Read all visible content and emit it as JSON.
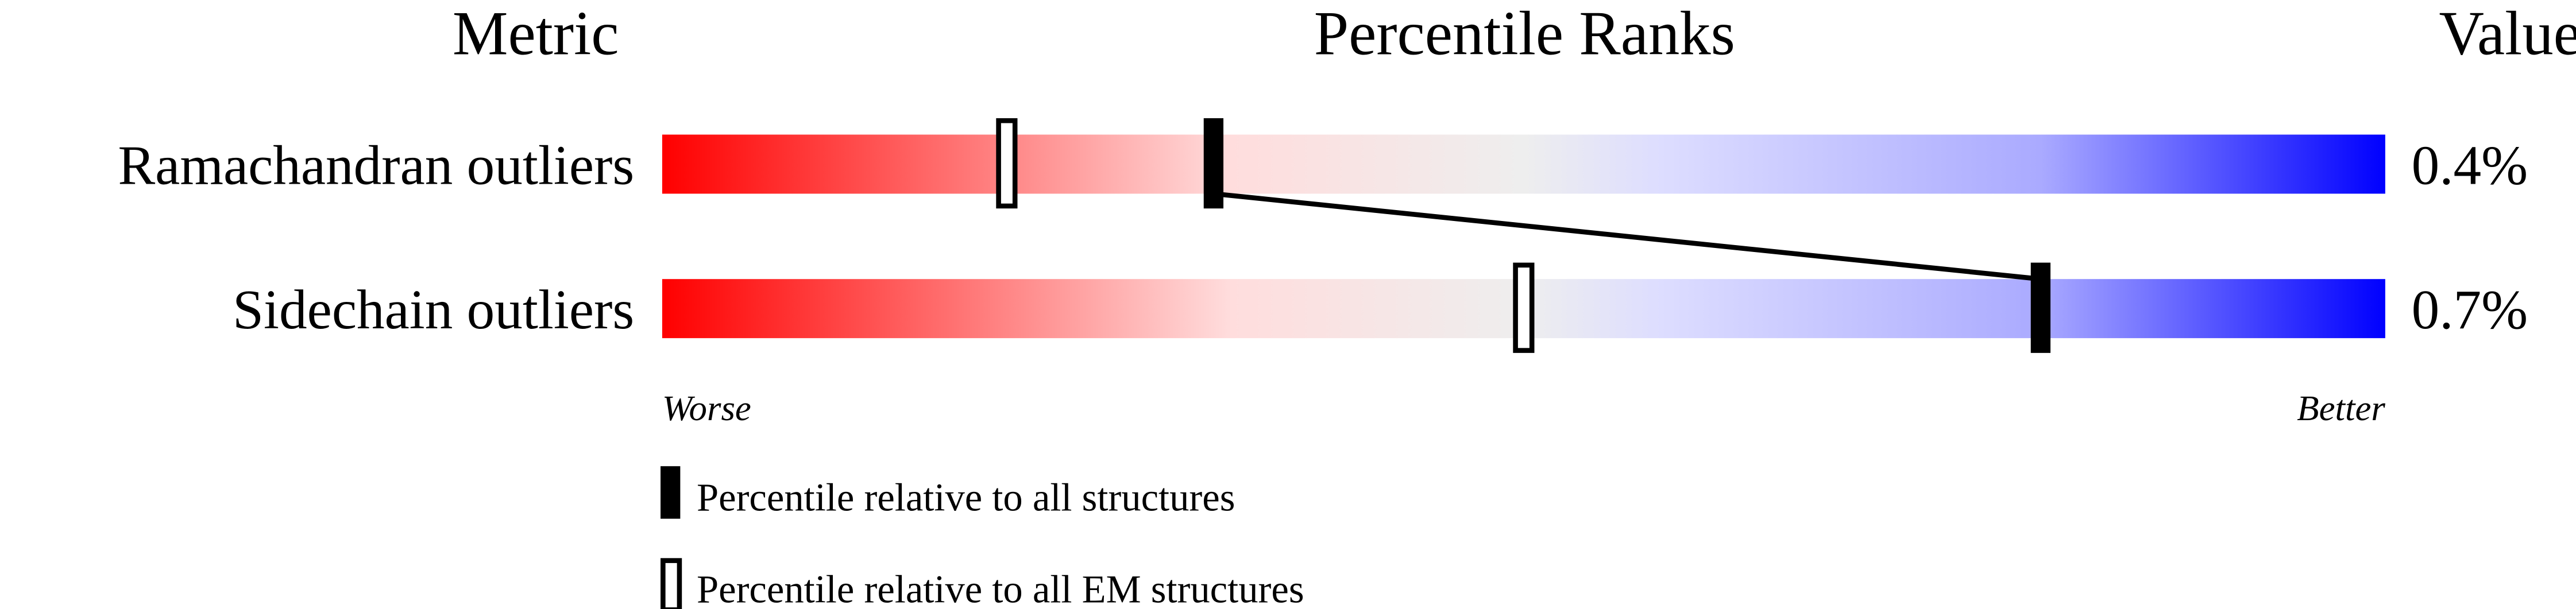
{
  "chart_data": {
    "type": "percentile-bar",
    "headers": {
      "metric": "Metric",
      "ranks": "Percentile Ranks",
      "value": "Value"
    },
    "scale": {
      "min_label": "Worse",
      "max_label": "Better",
      "range": [
        0,
        100
      ]
    },
    "gradient_colors": [
      "#ff0000",
      "#ffdddd",
      "#eeeeee",
      "#ddddff",
      "#aaaaff",
      "#0000ff"
    ],
    "rows": [
      {
        "metric": "Ramachandran outliers",
        "value": "0.4%",
        "percentile_all": 32,
        "percentile_em": 20
      },
      {
        "metric": "Sidechain outliers",
        "value": "0.7%",
        "percentile_all": 80,
        "percentile_em": 50
      }
    ],
    "legend": [
      {
        "marker": "filled",
        "label": "Percentile relative to all structures"
      },
      {
        "marker": "open",
        "label": "Percentile relative to all EM structures"
      }
    ]
  }
}
